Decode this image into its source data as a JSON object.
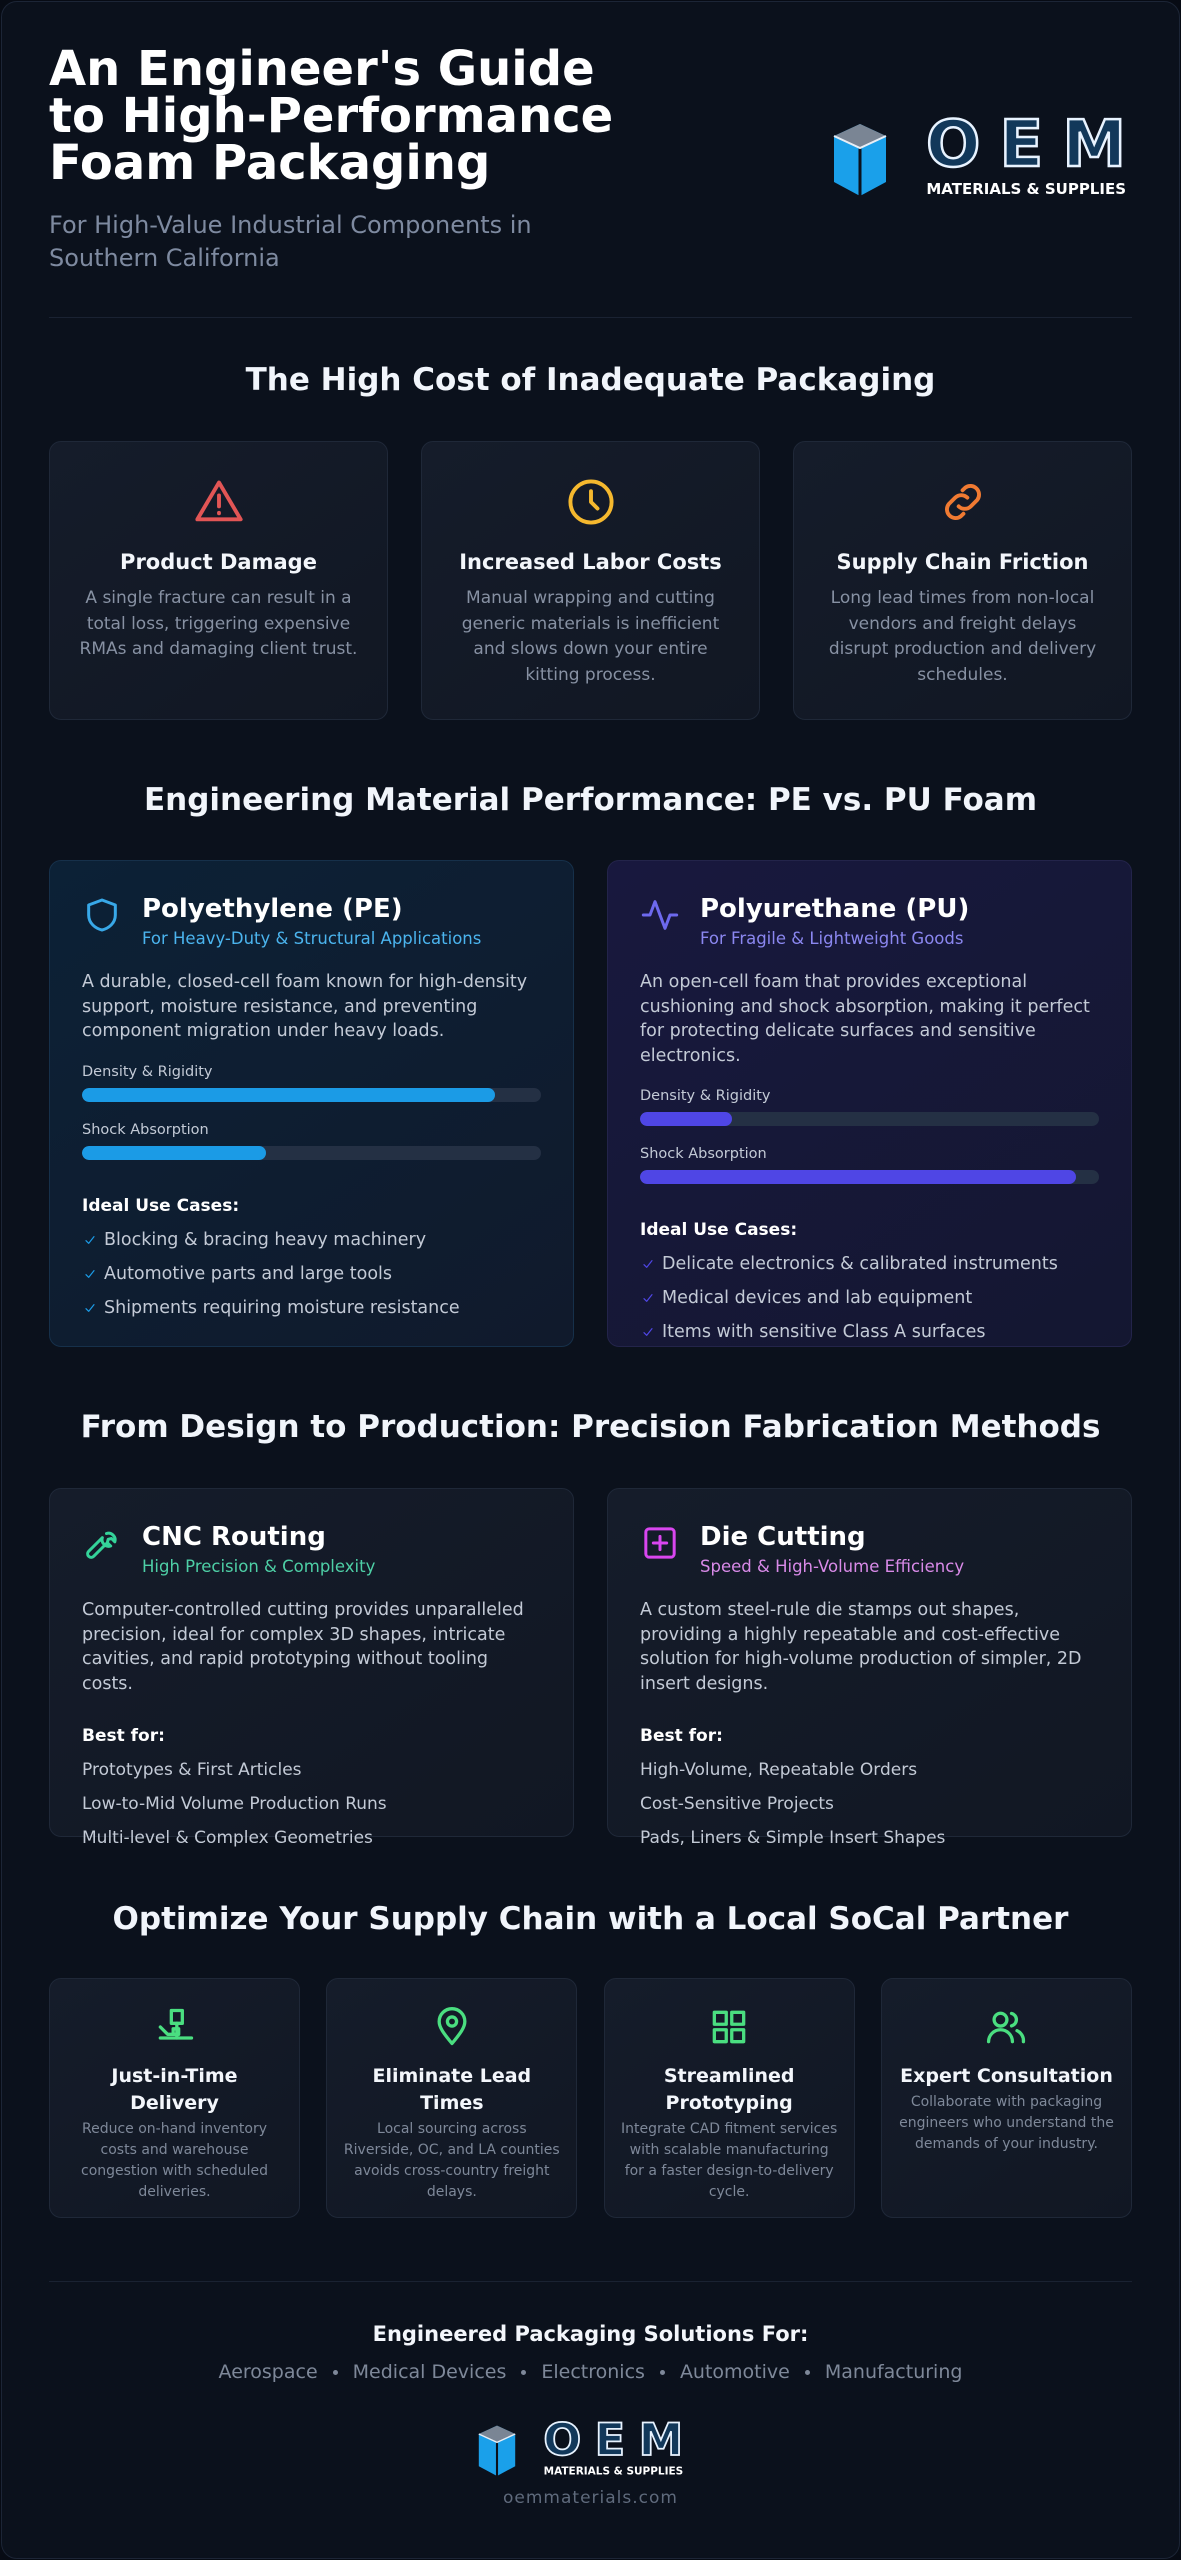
{
  "header": {
    "title": "An Engineer's Guide to High-Performance Foam Packaging",
    "subtitle": "For High-Value Industrial Components in Southern California"
  },
  "logo": {
    "mark": "OEM",
    "tagline": "MATERIALS & SUPPLIES"
  },
  "problems": {
    "heading": "The High Cost of Inadequate Packaging",
    "cards": [
      {
        "title": "Product Damage",
        "text": "A single fracture can result in a total loss, triggering expensive RMAs and damaging client trust."
      },
      {
        "title": "Increased Labor Costs",
        "text": "Manual wrapping and cutting generic materials is inefficient and slows down your entire kitting process."
      },
      {
        "title": "Supply Chain Friction",
        "text": "Long lead times from non-local vendors and freight delays disrupt production and delivery schedules."
      }
    ]
  },
  "materials": {
    "heading": "Engineering Material Performance: PE vs. PU Foam",
    "metric_lim": [
      0,
      100
    ],
    "cards": [
      {
        "name": "Polyethylene (PE)",
        "tagline": "For Heavy-Duty & Structural Applications",
        "color": "#1b9be6",
        "description": "A durable, closed-cell foam known for high-density support, moisture resistance, and preventing component migration under heavy loads.",
        "metrics": [
          {
            "label": "Density & Rigidity",
            "value": 90
          },
          {
            "label": "Shock Absorption",
            "value": 40
          }
        ],
        "use_cases_heading": "Ideal Use Cases:",
        "use_cases": [
          "Blocking & bracing heavy machinery",
          "Automotive parts and large tools",
          "Shipments requiring moisture resistance"
        ]
      },
      {
        "name": "Polyurethane (PU)",
        "tagline": "For Fragile & Lightweight Goods",
        "color": "#4f46e5",
        "description": "An open-cell foam that provides exceptional cushioning and shock absorption, making it perfect for protecting delicate surfaces and sensitive electronics.",
        "metrics": [
          {
            "label": "Density & Rigidity",
            "value": 20
          },
          {
            "label": "Shock Absorption",
            "value": 95
          }
        ],
        "use_cases_heading": "Ideal Use Cases:",
        "use_cases": [
          "Delicate electronics & calibrated instruments",
          "Medical devices and lab equipment",
          "Items with sensitive Class A surfaces"
        ]
      }
    ]
  },
  "methods": {
    "heading": "From Design to Production: Precision Fabrication Methods",
    "cards": [
      {
        "name": "CNC Routing",
        "tagline": "High Precision & Complexity",
        "description": "Computer-controlled cutting provides unparalleled precision, ideal for complex 3D shapes, intricate cavities, and rapid prototyping without tooling costs.",
        "best_for_heading": "Best for:",
        "best_for": [
          "Prototypes & First Articles",
          "Low-to-Mid Volume Production Runs",
          "Multi-level & Complex Geometries"
        ]
      },
      {
        "name": "Die Cutting",
        "tagline": "Speed & High-Volume Efficiency",
        "description": "A custom steel-rule die stamps out shapes, providing a highly repeatable and cost-effective solution for high-volume production of simpler, 2D insert designs.",
        "best_for_heading": "Best for:",
        "best_for": [
          "High-Volume, Repeatable Orders",
          "Cost-Sensitive Projects",
          "Pads, Liners & Simple Insert Shapes"
        ]
      }
    ]
  },
  "benefits": {
    "heading": "Optimize Your Supply Chain with a Local SoCal Partner",
    "cards": [
      {
        "title": "Just-in-Time Delivery",
        "text": "Reduce on-hand inventory costs and warehouse congestion with scheduled deliveries."
      },
      {
        "title": "Eliminate Lead Times",
        "text": "Local sourcing across Riverside, OC, and LA counties avoids cross-country freight delays."
      },
      {
        "title": "Streamlined Prototyping",
        "text": "Integrate CAD fitment services with scalable manufacturing for a faster design-to-delivery cycle."
      },
      {
        "title": "Expert Consultation",
        "text": "Collaborate with packaging engineers who understand the demands of your industry."
      }
    ]
  },
  "footer": {
    "heading": "Engineered Packaging Solutions For:",
    "industries": [
      "Aerospace",
      "Medical Devices",
      "Electronics",
      "Automotive",
      "Manufacturing"
    ],
    "url": "oemmaterials.com"
  }
}
